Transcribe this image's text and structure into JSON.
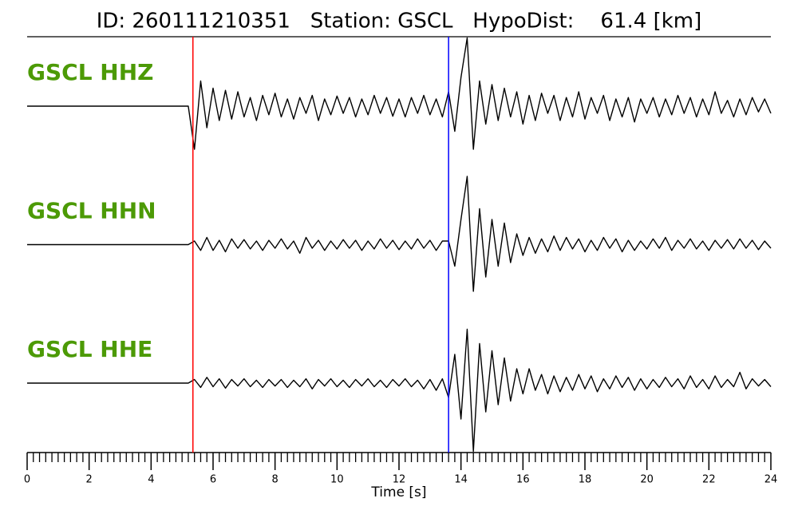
{
  "chart_data": {
    "type": "line",
    "title": "ID: 260111210351   Station: GSCL   HypoDist:    61.4 [km]",
    "xlabel": "Time [s]",
    "label_color": "#4c9a06",
    "xlim": [
      0,
      24
    ],
    "xticks": [
      0,
      2,
      4,
      6,
      8,
      10,
      12,
      14,
      16,
      18,
      20,
      22,
      24
    ],
    "xminorticks": [
      0.2,
      0.4,
      0.6,
      0.8,
      1,
      1.2,
      1.4,
      1.6,
      1.8,
      2.2,
      2.4,
      2.6,
      2.8,
      3,
      3.2,
      3.4,
      3.6,
      3.8,
      4.2,
      4.4,
      4.6,
      4.8,
      5,
      5.2,
      5.4,
      5.6,
      5.8,
      6.2,
      6.4,
      6.6,
      6.8,
      7,
      7.2,
      7.4,
      7.6,
      7.8,
      8.2,
      8.4,
      8.6,
      8.8,
      9,
      9.2,
      9.4,
      9.6,
      9.8,
      10.2,
      10.4,
      10.6,
      10.8,
      11,
      11.2,
      11.4,
      11.6,
      11.8,
      12.2,
      12.4,
      12.6,
      12.8,
      13,
      13.2,
      13.4,
      13.6,
      13.8,
      14.2,
      14.4,
      14.6,
      14.8,
      15,
      15.2,
      15.4,
      15.6,
      15.8,
      16.2,
      16.4,
      16.6,
      16.8,
      17,
      17.2,
      17.4,
      17.6,
      17.8,
      18.2,
      18.4,
      18.6,
      18.8,
      19,
      19.2,
      19.4,
      19.6,
      19.8,
      20.2,
      20.4,
      20.6,
      20.8,
      21,
      21.2,
      21.4,
      21.6,
      21.8,
      22.2,
      22.4,
      22.6,
      22.8,
      23,
      23.2,
      23.4,
      23.6,
      23.8
    ],
    "markers": [
      {
        "x": 5.35,
        "color": "#ff0000"
      },
      {
        "x": 13.6,
        "color": "#0000ff"
      }
    ],
    "x": [
      0,
      0.2,
      0.4,
      0.6,
      0.8,
      1,
      1.2,
      1.4,
      1.6,
      1.8,
      2,
      2.2,
      2.4,
      2.6,
      2.8,
      3,
      3.2,
      3.4,
      3.6,
      3.8,
      4,
      4.2,
      4.4,
      4.6,
      4.8,
      5,
      5.2,
      5.4,
      5.6,
      5.8,
      6,
      6.2,
      6.4,
      6.6,
      6.8,
      7,
      7.2,
      7.4,
      7.6,
      7.8,
      8,
      8.2,
      8.4,
      8.6,
      8.8,
      9,
      9.2,
      9.4,
      9.6,
      9.8,
      10,
      10.2,
      10.4,
      10.6,
      10.8,
      11,
      11.2,
      11.4,
      11.6,
      11.8,
      12,
      12.2,
      12.4,
      12.6,
      12.8,
      13,
      13.2,
      13.4,
      13.6,
      13.8,
      14,
      14.2,
      14.4,
      14.6,
      14.8,
      15,
      15.2,
      15.4,
      15.6,
      15.8,
      16,
      16.2,
      16.4,
      16.6,
      16.8,
      17,
      17.2,
      17.4,
      17.6,
      17.8,
      18,
      18.2,
      18.4,
      18.6,
      18.8,
      19,
      19.2,
      19.4,
      19.6,
      19.8,
      20,
      20.2,
      20.4,
      20.6,
      20.8,
      21,
      21.2,
      21.4,
      21.6,
      21.8,
      22,
      22.2,
      22.4,
      22.6,
      22.8,
      23,
      23.2,
      23.4,
      23.6,
      23.8,
      24
    ],
    "series": [
      {
        "name": "GSCL HHZ",
        "color": "#000000",
        "values": [
          0,
          0,
          0,
          0,
          0,
          0,
          0,
          0,
          0,
          0,
          0,
          0,
          0,
          0,
          0,
          0,
          0,
          0,
          0,
          0,
          0,
          0,
          0,
          0,
          0,
          0,
          0,
          -0.6,
          0.35,
          -0.3,
          0.25,
          -0.2,
          0.22,
          -0.18,
          0.2,
          -0.15,
          0.12,
          -0.2,
          0.15,
          -0.12,
          0.18,
          -0.15,
          0.1,
          -0.18,
          0.12,
          -0.1,
          0.15,
          -0.2,
          0.1,
          -0.12,
          0.14,
          -0.1,
          0.12,
          -0.15,
          0.1,
          -0.12,
          0.15,
          -0.1,
          0.12,
          -0.14,
          0.1,
          -0.15,
          0.12,
          -0.1,
          0.15,
          -0.12,
          0.1,
          -0.15,
          0.2,
          -0.35,
          0.4,
          0.95,
          -0.6,
          0.35,
          -0.25,
          0.3,
          -0.2,
          0.25,
          -0.15,
          0.2,
          -0.25,
          0.15,
          -0.2,
          0.18,
          -0.1,
          0.15,
          -0.2,
          0.12,
          -0.15,
          0.2,
          -0.18,
          0.12,
          -0.1,
          0.15,
          -0.2,
          0.1,
          -0.15,
          0.12,
          -0.22,
          0.1,
          -0.1,
          0.12,
          -0.15,
          0.1,
          -0.12,
          0.15,
          -0.1,
          0.12,
          -0.15,
          0.1,
          -0.12,
          0.2,
          -0.1,
          0.08,
          -0.15,
          0.1,
          -0.12,
          0.12,
          -0.08,
          0.1,
          -0.1
        ]
      },
      {
        "name": "GSCL HHN",
        "color": "#000000",
        "values": [
          0,
          0,
          0,
          0,
          0,
          0,
          0,
          0,
          0,
          0,
          0,
          0,
          0,
          0,
          0,
          0,
          0,
          0,
          0,
          0,
          0,
          0,
          0,
          0,
          0,
          0,
          0,
          0.05,
          -0.08,
          0.1,
          -0.08,
          0.06,
          -0.1,
          0.08,
          -0.05,
          0.07,
          -0.06,
          0.05,
          -0.08,
          0.06,
          -0.05,
          0.08,
          -0.06,
          0.05,
          -0.12,
          0.1,
          -0.05,
          0.06,
          -0.08,
          0.05,
          -0.06,
          0.07,
          -0.05,
          0.06,
          -0.08,
          0.05,
          -0.06,
          0.08,
          -0.05,
          0.06,
          -0.07,
          0.05,
          -0.06,
          0.08,
          -0.05,
          0.06,
          -0.08,
          0.05,
          0.05,
          -0.3,
          0.35,
          0.95,
          -0.65,
          0.5,
          -0.45,
          0.35,
          -0.3,
          0.3,
          -0.25,
          0.15,
          -0.15,
          0.1,
          -0.12,
          0.08,
          -0.1,
          0.12,
          -0.08,
          0.1,
          -0.06,
          0.08,
          -0.1,
          0.06,
          -0.08,
          0.1,
          -0.05,
          0.08,
          -0.1,
          0.06,
          -0.08,
          0.05,
          -0.06,
          0.08,
          -0.05,
          0.1,
          -0.08,
          0.06,
          -0.05,
          0.08,
          -0.06,
          0.05,
          -0.08,
          0.06,
          -0.05,
          0.07,
          -0.06,
          0.08,
          -0.05,
          0.06,
          -0.07,
          0.05,
          -0.05
        ]
      },
      {
        "name": "GSCL HHE",
        "color": "#000000",
        "values": [
          0,
          0,
          0,
          0,
          0,
          0,
          0,
          0,
          0,
          0,
          0,
          0,
          0,
          0,
          0,
          0,
          0,
          0,
          0,
          0,
          0,
          0,
          0,
          0,
          0,
          0,
          0,
          0.05,
          -0.06,
          0.08,
          -0.05,
          0.06,
          -0.07,
          0.05,
          -0.04,
          0.06,
          -0.05,
          0.04,
          -0.06,
          0.05,
          -0.04,
          0.05,
          -0.06,
          0.04,
          -0.05,
          0.06,
          -0.08,
          0.05,
          -0.04,
          0.06,
          -0.05,
          0.04,
          -0.06,
          0.05,
          -0.04,
          0.06,
          -0.05,
          0.04,
          -0.06,
          0.05,
          -0.04,
          0.06,
          -0.05,
          0.04,
          -0.08,
          0.05,
          -0.1,
          0.06,
          -0.2,
          0.4,
          -0.5,
          0.75,
          -0.95,
          0.55,
          -0.4,
          0.45,
          -0.3,
          0.35,
          -0.25,
          0.2,
          -0.15,
          0.2,
          -0.1,
          0.12,
          -0.15,
          0.1,
          -0.12,
          0.08,
          -0.1,
          0.12,
          -0.08,
          0.1,
          -0.12,
          0.06,
          -0.08,
          0.1,
          -0.06,
          0.08,
          -0.1,
          0.06,
          -0.08,
          0.05,
          -0.06,
          0.08,
          -0.05,
          0.06,
          -0.08,
          0.1,
          -0.06,
          0.05,
          -0.08,
          0.1,
          -0.06,
          0.05,
          -0.05,
          0.15,
          -0.08,
          0.06,
          -0.04,
          0.05,
          -0.05
        ]
      }
    ]
  }
}
